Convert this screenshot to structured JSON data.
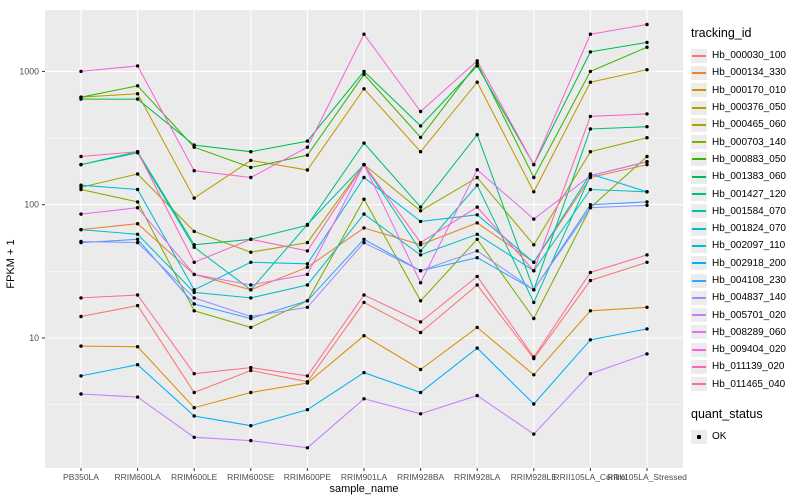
{
  "chart_data": {
    "type": "line",
    "x_label": "sample_name",
    "y_label": "FPKM + 1",
    "y_scale": "log10",
    "y_ticks": [
      10,
      100,
      1000
    ],
    "y_minor_ticks": [
      3.162,
      31.62,
      316.2
    ],
    "panel_bg": "#EBEBEB",
    "grid_color": "#FFFFFF",
    "tick_color": "#333333",
    "tick_label_color": "#4D4D4D",
    "point_color": "#000000",
    "categories": [
      "PB350LA",
      "RRIM600LA",
      "RRIM600LE",
      "RRIM600SE",
      "RRIM600PE",
      "RRIM901LA",
      "RRIM928BA",
      "RRIM928LA",
      "RRIM928LE",
      "RRII105LA_Control",
      "RRII105LA_Stressed"
    ],
    "legend_titles": {
      "tracking": "tracking_id",
      "quant": "quant_status"
    },
    "quant_status_items": [
      "OK"
    ],
    "series": [
      {
        "name": "Hb_000030_100",
        "color": "#F8766D",
        "values": [
          14.5,
          17.5,
          3.9,
          5.7,
          4.7,
          18.5,
          11,
          25,
          7,
          27,
          37
        ]
      },
      {
        "name": "Hb_000134_330",
        "color": "#EA8331",
        "values": [
          65,
          72,
          30,
          23,
          34,
          67,
          50,
          73,
          37,
          160,
          200
        ]
      },
      {
        "name": "Hb_000170_010",
        "color": "#D89000",
        "values": [
          8.7,
          8.6,
          3.0,
          3.9,
          4.6,
          10.4,
          5.8,
          12,
          5.3,
          16,
          17
        ]
      },
      {
        "name": "Hb_000376_050",
        "color": "#C09B00",
        "values": [
          640,
          680,
          112,
          215,
          182,
          740,
          250,
          830,
          125,
          830,
          1030
        ]
      },
      {
        "name": "Hb_000465_060",
        "color": "#A3A500",
        "values": [
          135,
          170,
          63,
          44,
          52,
          200,
          90,
          160,
          50,
          250,
          318
        ]
      },
      {
        "name": "Hb_000703_140",
        "color": "#7CAE00",
        "values": [
          130,
          105,
          16,
          12,
          19,
          110,
          19,
          55,
          14,
          95,
          230
        ]
      },
      {
        "name": "Hb_000883_050",
        "color": "#39B600",
        "values": [
          640,
          780,
          270,
          190,
          235,
          950,
          320,
          1150,
          160,
          1000,
          1520
        ]
      },
      {
        "name": "Hb_001383_060",
        "color": "#00BB4E",
        "values": [
          620,
          620,
          280,
          250,
          300,
          1000,
          390,
          1100,
          200,
          1400,
          1650
        ]
      },
      {
        "name": "Hb_001427_120",
        "color": "#00BF7D",
        "values": [
          200,
          250,
          50,
          55,
          70,
          290,
          96,
          335,
          23,
          370,
          385
        ]
      },
      {
        "name": "Hb_001584_070",
        "color": "#00C1A3",
        "values": [
          200,
          245,
          48,
          23,
          71,
          200,
          45,
          140,
          18.5,
          165,
          210
        ]
      },
      {
        "name": "Hb_001824_070",
        "color": "#00BFC4",
        "values": [
          65,
          60,
          22,
          20,
          25,
          85,
          42,
          60,
          32,
          130,
          125
        ]
      },
      {
        "name": "Hb_002097_110",
        "color": "#00BADE",
        "values": [
          140,
          130,
          23,
          37,
          36,
          160,
          75,
          84,
          37,
          170,
          125
        ]
      },
      {
        "name": "Hb_002918_200",
        "color": "#00B0F6",
        "values": [
          5.2,
          6.3,
          2.6,
          2.2,
          2.9,
          5.5,
          3.9,
          8.4,
          3.2,
          9.7,
          11.7
        ]
      },
      {
        "name": "Hb_004108_230",
        "color": "#35A2FF",
        "values": [
          52,
          55,
          18,
          14,
          19,
          55,
          32,
          40,
          23,
          100,
          105
        ]
      },
      {
        "name": "Hb_004837_140",
        "color": "#9590FF",
        "values": [
          53,
          52,
          20,
          14.5,
          17,
          52,
          32,
          45,
          23,
          95,
          99
        ]
      },
      {
        "name": "Hb_005701_020",
        "color": "#C77CFF",
        "values": [
          3.8,
          3.6,
          1.8,
          1.7,
          1.5,
          3.5,
          2.7,
          3.7,
          1.9,
          5.4,
          7.6
        ]
      },
      {
        "name": "Hb_008289_060",
        "color": "#E76BF3",
        "values": [
          85,
          95,
          30,
          25,
          30,
          200,
          26,
          183,
          78,
          165,
          210
        ]
      },
      {
        "name": "Hb_009404_020",
        "color": "#FA62DB",
        "values": [
          1000,
          1100,
          180,
          160,
          270,
          1900,
          500,
          1200,
          200,
          1900,
          2250
        ]
      },
      {
        "name": "Hb_011139_020",
        "color": "#FF62BC",
        "values": [
          230,
          250,
          37,
          55,
          45,
          200,
          52,
          96,
          32,
          460,
          480
        ]
      },
      {
        "name": "Hb_011465_040",
        "color": "#FF6A98",
        "values": [
          20,
          21,
          5.4,
          6.0,
          5.2,
          21,
          13.2,
          29,
          7.2,
          31,
          42
        ]
      }
    ]
  }
}
